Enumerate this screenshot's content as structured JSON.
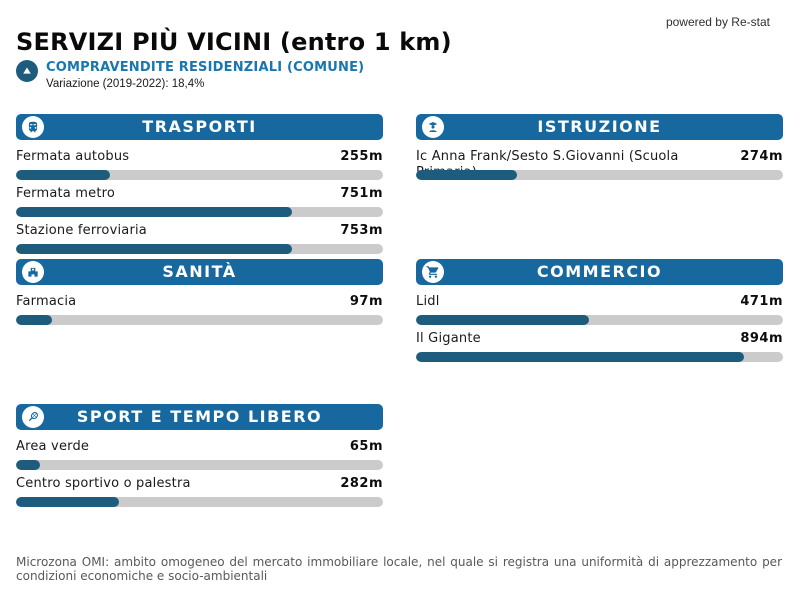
{
  "page": {
    "title": "SERVIZI PIÙ VICINI (entro 1 km)",
    "powered_by": "powered by Re-stat"
  },
  "market": {
    "icon": "up-arrow-circle-icon",
    "label": "COMPRAVENDITE RESIDENZIALI (COMUNE)",
    "variation": "Variazione (2019-2022): 18,4%"
  },
  "colors": {
    "header_blue": "#16689E",
    "bar_fill_blue": "#1E5C7E",
    "bar_track_gray": "#CBCBCB",
    "accent_link_blue": "#1777AE"
  },
  "panels": [
    {
      "title": "TRASPORTI",
      "icon": "train-icon",
      "items": [
        {
          "label": "Fermata autobus",
          "value": "255m",
          "fill_pct": 25.5
        },
        {
          "label": "Fermata metro",
          "value": "751m",
          "fill_pct": 75.1
        },
        {
          "label": "Stazione ferroviaria",
          "value": "753m",
          "fill_pct": 75.3
        }
      ]
    },
    {
      "title": "ISTRUZIONE",
      "icon": "student-icon",
      "items": [
        {
          "label": "Ic Anna Frank/Sesto S.Giovanni (Scuola Primaria)",
          "value": "274m",
          "fill_pct": 27.4
        }
      ]
    },
    {
      "title": "SANITÀ",
      "icon": "hospital-icon",
      "items": [
        {
          "label": "Farmacia",
          "value": "97m",
          "fill_pct": 9.7
        }
      ]
    },
    {
      "title": "COMMERCIO",
      "icon": "shopping-cart-icon",
      "items": [
        {
          "label": "Lidl",
          "value": "471m",
          "fill_pct": 47.1
        },
        {
          "label": "Il Gigante",
          "value": "894m",
          "fill_pct": 89.4
        }
      ]
    },
    {
      "title": "SPORT E TEMPO LIBERO",
      "icon": "tennis-racket-icon",
      "items": [
        {
          "label": "Area verde",
          "value": "65m",
          "fill_pct": 6.5
        },
        {
          "label": "Centro sportivo o palestra",
          "value": "282m",
          "fill_pct": 28.2
        }
      ]
    }
  ],
  "footer": {
    "text": "Microzona OMI: ambito omogeneo del mercato immobiliare locale, nel quale si registra una uniformità di apprezzamento per condizioni economiche e socio-ambientali"
  },
  "chart_data": [
    {
      "type": "bar",
      "orientation": "horizontal",
      "title": "TRASPORTI",
      "categories": [
        "Fermata autobus",
        "Fermata metro",
        "Stazione ferroviaria"
      ],
      "values": [
        255,
        751,
        753
      ],
      "unit": "m",
      "xlim": [
        0,
        1000
      ]
    },
    {
      "type": "bar",
      "orientation": "horizontal",
      "title": "ISTRUZIONE",
      "categories": [
        "Ic Anna Frank/Sesto S.Giovanni (Scuola Primaria)"
      ],
      "values": [
        274
      ],
      "unit": "m",
      "xlim": [
        0,
        1000
      ]
    },
    {
      "type": "bar",
      "orientation": "horizontal",
      "title": "SANITÀ",
      "categories": [
        "Farmacia"
      ],
      "values": [
        97
      ],
      "unit": "m",
      "xlim": [
        0,
        1000
      ]
    },
    {
      "type": "bar",
      "orientation": "horizontal",
      "title": "COMMERCIO",
      "categories": [
        "Lidl",
        "Il Gigante"
      ],
      "values": [
        471,
        894
      ],
      "unit": "m",
      "xlim": [
        0,
        1000
      ]
    },
    {
      "type": "bar",
      "orientation": "horizontal",
      "title": "SPORT E TEMPO LIBERO",
      "categories": [
        "Area verde",
        "Centro sportivo o palestra"
      ],
      "values": [
        65,
        282
      ],
      "unit": "m",
      "xlim": [
        0,
        1000
      ]
    }
  ]
}
